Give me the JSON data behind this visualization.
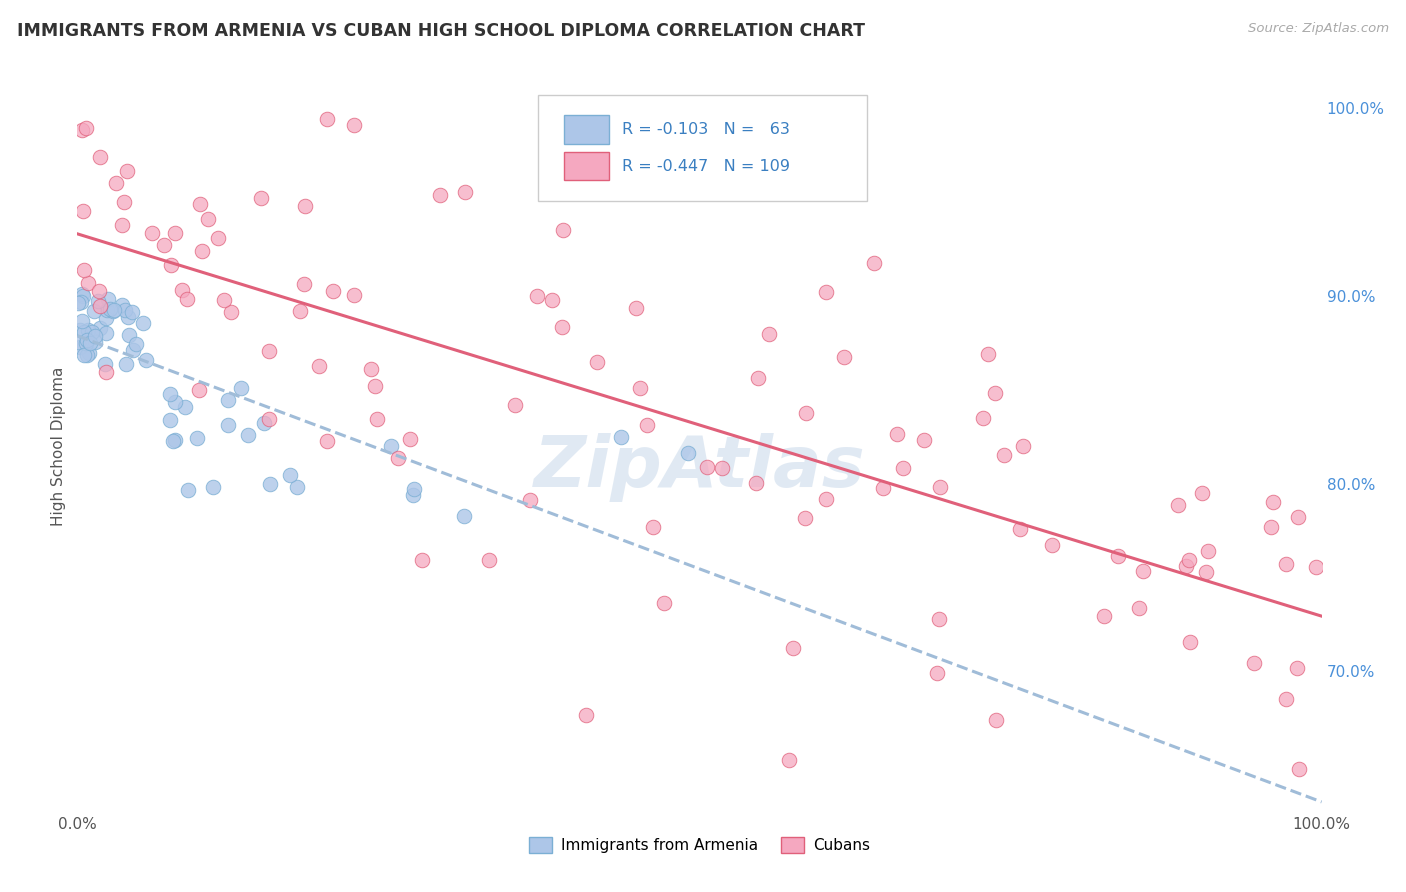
{
  "title": "IMMIGRANTS FROM ARMENIA VS CUBAN HIGH SCHOOL DIPLOMA CORRELATION CHART",
  "source": "Source: ZipAtlas.com",
  "ylabel": "High School Diploma",
  "legend_label1": "Immigrants from Armenia",
  "legend_label2": "Cubans",
  "r1": -0.103,
  "n1": 63,
  "r2": -0.447,
  "n2": 109,
  "color1": "#adc6e8",
  "color2": "#f5a8c0",
  "trendline1_color": "#7bafd4",
  "trendline2_color": "#e0607a",
  "background_color": "#ffffff",
  "grid_color": "#d0d0d0",
  "xlim": [
    0.0,
    1.0
  ],
  "ylim": [
    0.625,
    1.015
  ]
}
